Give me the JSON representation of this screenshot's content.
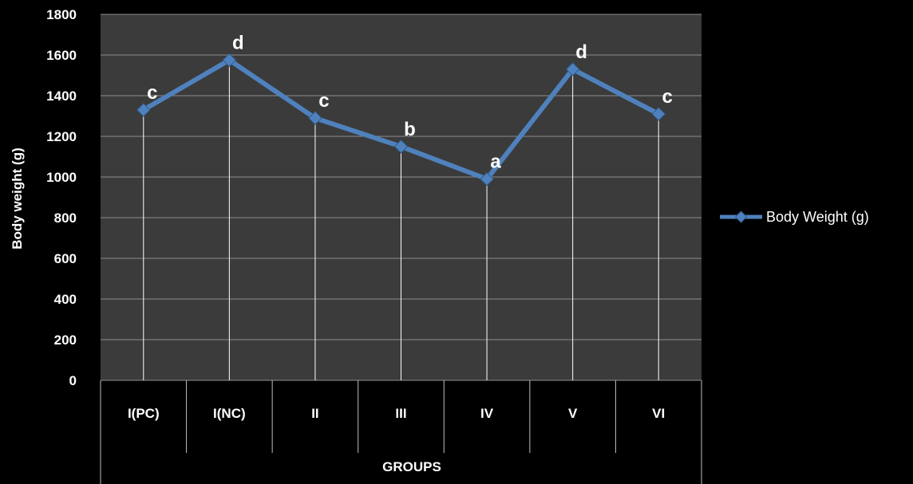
{
  "chart_data": {
    "type": "line",
    "ylabel": "Body weight  (g)",
    "xlabel": "GROUPS",
    "categories": [
      "I(PC)",
      "I(NC)",
      "II",
      "III",
      "IV",
      "V",
      "VI"
    ],
    "series": [
      {
        "name": "Body Weight (g)",
        "values": [
          1330,
          1575,
          1290,
          1150,
          990,
          1530,
          1310
        ],
        "labels": [
          "c",
          "d",
          "c",
          "b",
          "a",
          "d",
          "c"
        ],
        "color": "#4f81bd"
      }
    ],
    "ylim": [
      0,
      1800
    ],
    "yticks": [
      0,
      200,
      400,
      600,
      800,
      1000,
      1200,
      1400,
      1600,
      1800
    ],
    "grid": true,
    "drop_lines": true,
    "legend_position": "right",
    "plot_background": "#3b3b3b",
    "page_background": "#000000"
  }
}
